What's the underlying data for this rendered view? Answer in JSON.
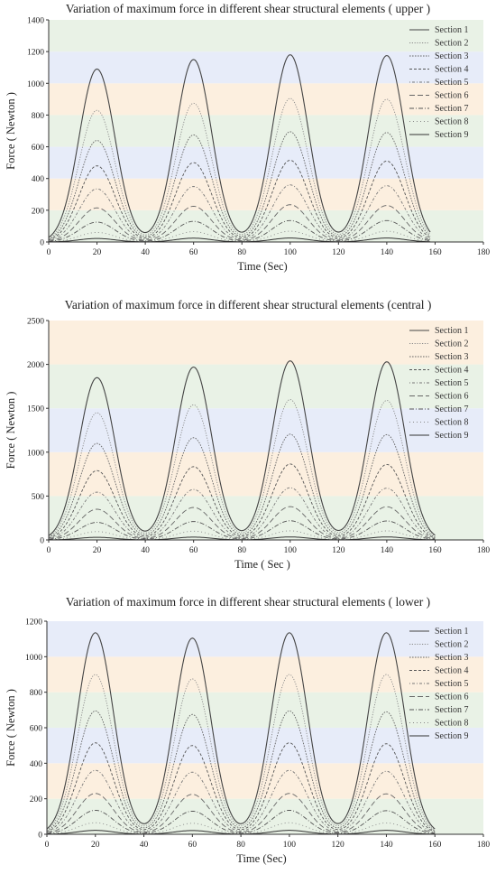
{
  "chart_data": [
    {
      "type": "line",
      "title": "Variation of maximum force in different shear structural elements ( upper )",
      "xlabel": "Time (Sec)",
      "ylabel": "Force ( Newton )",
      "xlim": [
        0,
        180
      ],
      "ylim": [
        0,
        1400
      ],
      "xticks": [
        "0",
        "20",
        "40",
        "60",
        "80",
        "100",
        "120",
        "140",
        "160",
        "180"
      ],
      "yticks": [
        "0",
        "200",
        "400",
        "600",
        "800",
        "1000",
        "1200",
        "1400"
      ],
      "band_step": 200,
      "legend_position": "top-right",
      "x_end": 158,
      "peak_times": [
        20,
        60,
        100,
        140
      ],
      "series": [
        {
          "name": "Section 1",
          "peaks": [
            1090,
            1150,
            1180,
            1175
          ]
        },
        {
          "name": "Section 2",
          "peaks": [
            830,
            875,
            905,
            900
          ]
        },
        {
          "name": "Section 3",
          "peaks": [
            640,
            675,
            695,
            690
          ]
        },
        {
          "name": "Section 4",
          "peaks": [
            480,
            500,
            515,
            510
          ]
        },
        {
          "name": "Section 5",
          "peaks": [
            335,
            350,
            360,
            355
          ]
        },
        {
          "name": "Section 6",
          "peaks": [
            215,
            225,
            235,
            230
          ]
        },
        {
          "name": "Section 7",
          "peaks": [
            125,
            130,
            135,
            135
          ]
        },
        {
          "name": "Section 8",
          "peaks": [
            60,
            65,
            68,
            68
          ]
        },
        {
          "name": "Section 9",
          "peaks": [
            22,
            24,
            25,
            25
          ]
        }
      ]
    },
    {
      "type": "line",
      "title": "Variation of maximum force in different shear structural elements (central )",
      "xlabel": "Time ( Sec )",
      "ylabel": "Force ( Newton )",
      "xlim": [
        0,
        180
      ],
      "ylim": [
        0,
        2500
      ],
      "xticks": [
        "0",
        "20",
        "40",
        "60",
        "80",
        "100",
        "120",
        "140",
        "160",
        "180"
      ],
      "yticks": [
        "0",
        "500",
        "1000",
        "1500",
        "2000",
        "2500"
      ],
      "band_step": 500,
      "legend_position": "top-right",
      "x_end": 160,
      "peak_times": [
        20,
        60,
        100,
        140
      ],
      "series": [
        {
          "name": "Section 1",
          "peaks": [
            1850,
            1970,
            2040,
            2030
          ]
        },
        {
          "name": "Section 2",
          "peaks": [
            1450,
            1540,
            1600,
            1590
          ]
        },
        {
          "name": "Section 3",
          "peaks": [
            1100,
            1165,
            1205,
            1200
          ]
        },
        {
          "name": "Section 4",
          "peaks": [
            790,
            835,
            865,
            860
          ]
        },
        {
          "name": "Section 5",
          "peaks": [
            545,
            575,
            595,
            590
          ]
        },
        {
          "name": "Section 6",
          "peaks": [
            350,
            370,
            380,
            378
          ]
        },
        {
          "name": "Section 7",
          "peaks": [
            200,
            210,
            218,
            216
          ]
        },
        {
          "name": "Section 8",
          "peaks": [
            95,
            100,
            104,
            103
          ]
        },
        {
          "name": "Section 9",
          "peaks": [
            30,
            32,
            34,
            34
          ]
        }
      ]
    },
    {
      "type": "line",
      "title": "Variation of maximum force in different shear structural elements ( lower )",
      "xlabel": "Time (Sec)",
      "ylabel": "Force ( Newton )",
      "xlim": [
        0,
        180
      ],
      "ylim": [
        0,
        1200
      ],
      "xticks": [
        "0",
        "20",
        "40",
        "60",
        "80",
        "100",
        "120",
        "140",
        "160",
        "180"
      ],
      "yticks": [
        "0",
        "200",
        "400",
        "600",
        "800",
        "1000",
        "1200"
      ],
      "band_step": 200,
      "legend_position": "top-right",
      "x_end": 160,
      "peak_times": [
        20,
        60,
        100,
        140
      ],
      "series": [
        {
          "name": "Section 1",
          "peaks": [
            1135,
            1105,
            1135,
            1135
          ]
        },
        {
          "name": "Section 2",
          "peaks": [
            900,
            875,
            900,
            900
          ]
        },
        {
          "name": "Section 3",
          "peaks": [
            695,
            675,
            695,
            690
          ]
        },
        {
          "name": "Section 4",
          "peaks": [
            515,
            500,
            515,
            510
          ]
        },
        {
          "name": "Section 5",
          "peaks": [
            360,
            350,
            360,
            355
          ]
        },
        {
          "name": "Section 6",
          "peaks": [
            230,
            225,
            230,
            228
          ]
        },
        {
          "name": "Section 7",
          "peaks": [
            135,
            130,
            135,
            133
          ]
        },
        {
          "name": "Section 8",
          "peaks": [
            65,
            62,
            65,
            64
          ]
        },
        {
          "name": "Section 9",
          "peaks": [
            22,
            21,
            22,
            22
          ]
        }
      ]
    }
  ],
  "colors": {
    "band_colors": [
      "#e9f2e6",
      "#fcefdf",
      "#e7ecf9"
    ],
    "series_colors": [
      "#444444",
      "#8a8a8a",
      "#666666",
      "#555555",
      "#777777",
      "#666666",
      "#555555",
      "#888888",
      "#333333"
    ]
  }
}
